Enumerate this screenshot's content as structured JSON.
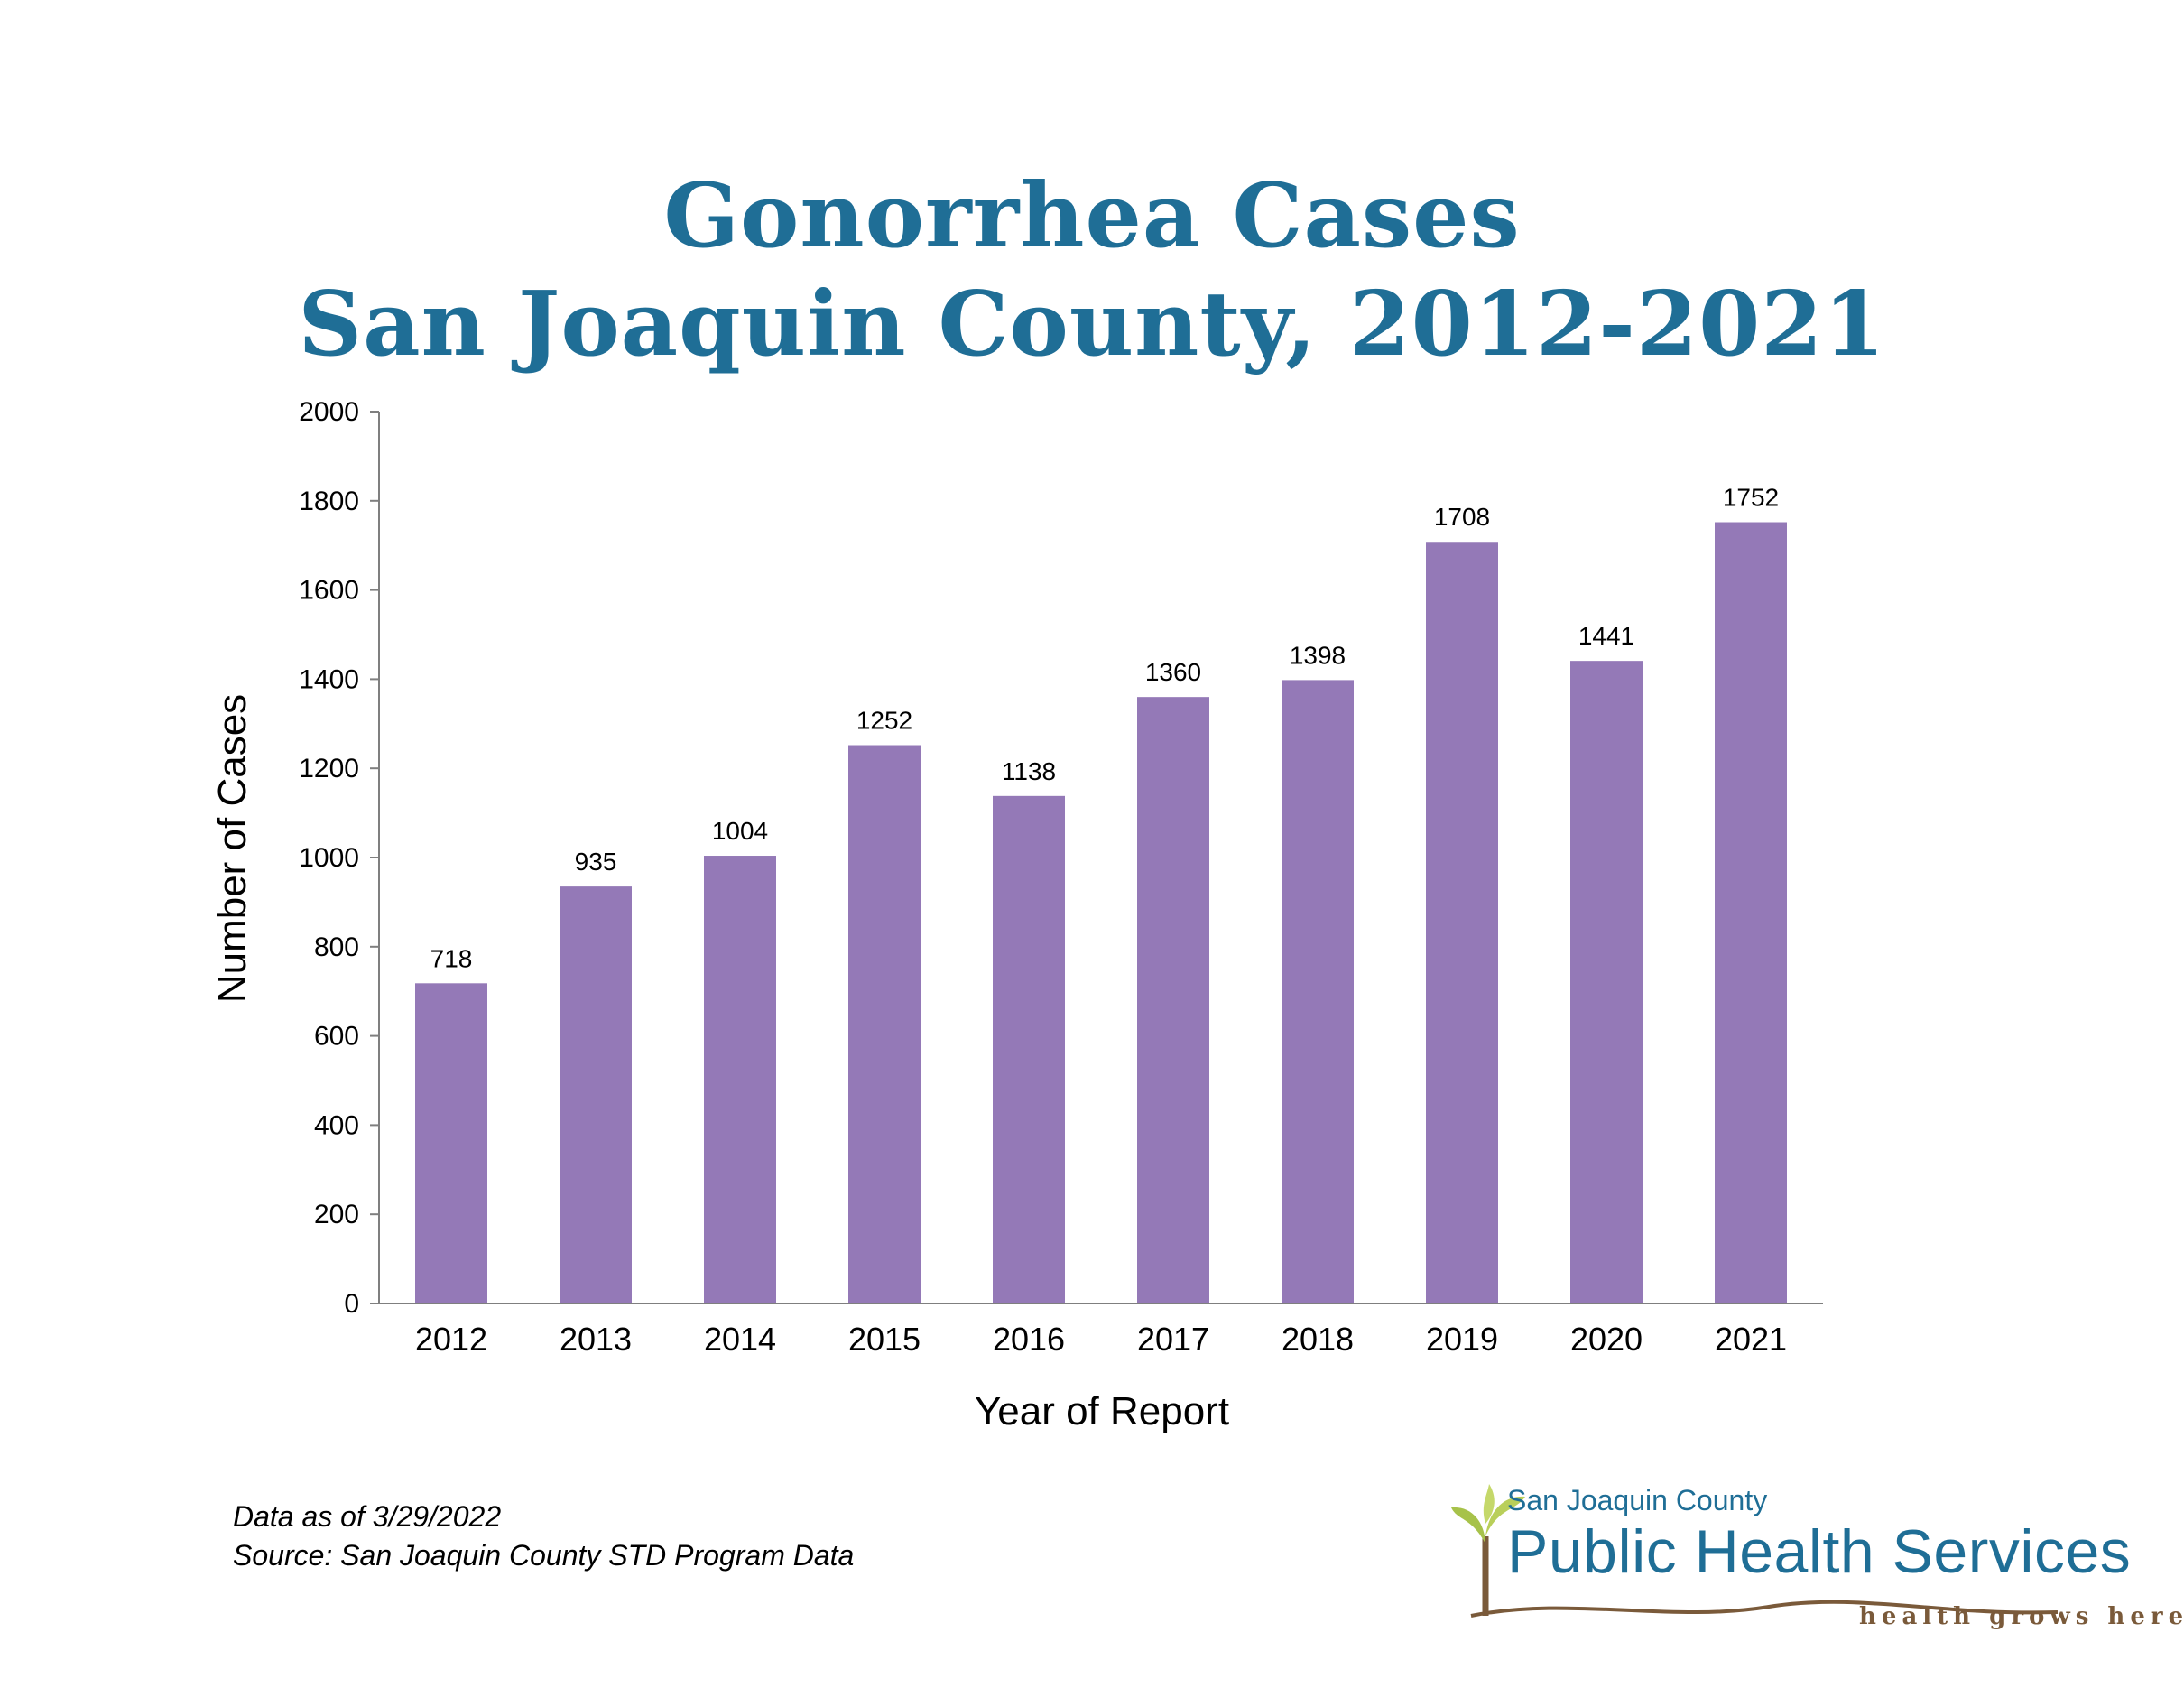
{
  "chart_data": {
    "type": "bar",
    "title_lines": [
      "Gonorrhea Cases",
      "San Joaquin County, 2012-2021"
    ],
    "xlabel": "Year of Report",
    "ylabel": "Number of Cases",
    "categories": [
      "2012",
      "2013",
      "2014",
      "2015",
      "2016",
      "2017",
      "2018",
      "2019",
      "2020",
      "2021"
    ],
    "values": [
      718,
      935,
      1004,
      1252,
      1138,
      1360,
      1398,
      1708,
      1441,
      1752
    ],
    "ylim": [
      0,
      2000
    ],
    "yticks": [
      0,
      200,
      400,
      600,
      800,
      1000,
      1200,
      1400,
      1600,
      1800,
      2000
    ],
    "grid": false,
    "bar_color": "#9479b7",
    "data_labels": true
  },
  "footnotes": {
    "data_as_of": "Data as of 3/29/2022",
    "source": "Source:  San Joaquin County STD Program  Data"
  },
  "logo": {
    "top_text": "San Joaquin County",
    "main_text": "Public Health Services",
    "tagline": "health grows here",
    "color": "#1f6e96"
  }
}
